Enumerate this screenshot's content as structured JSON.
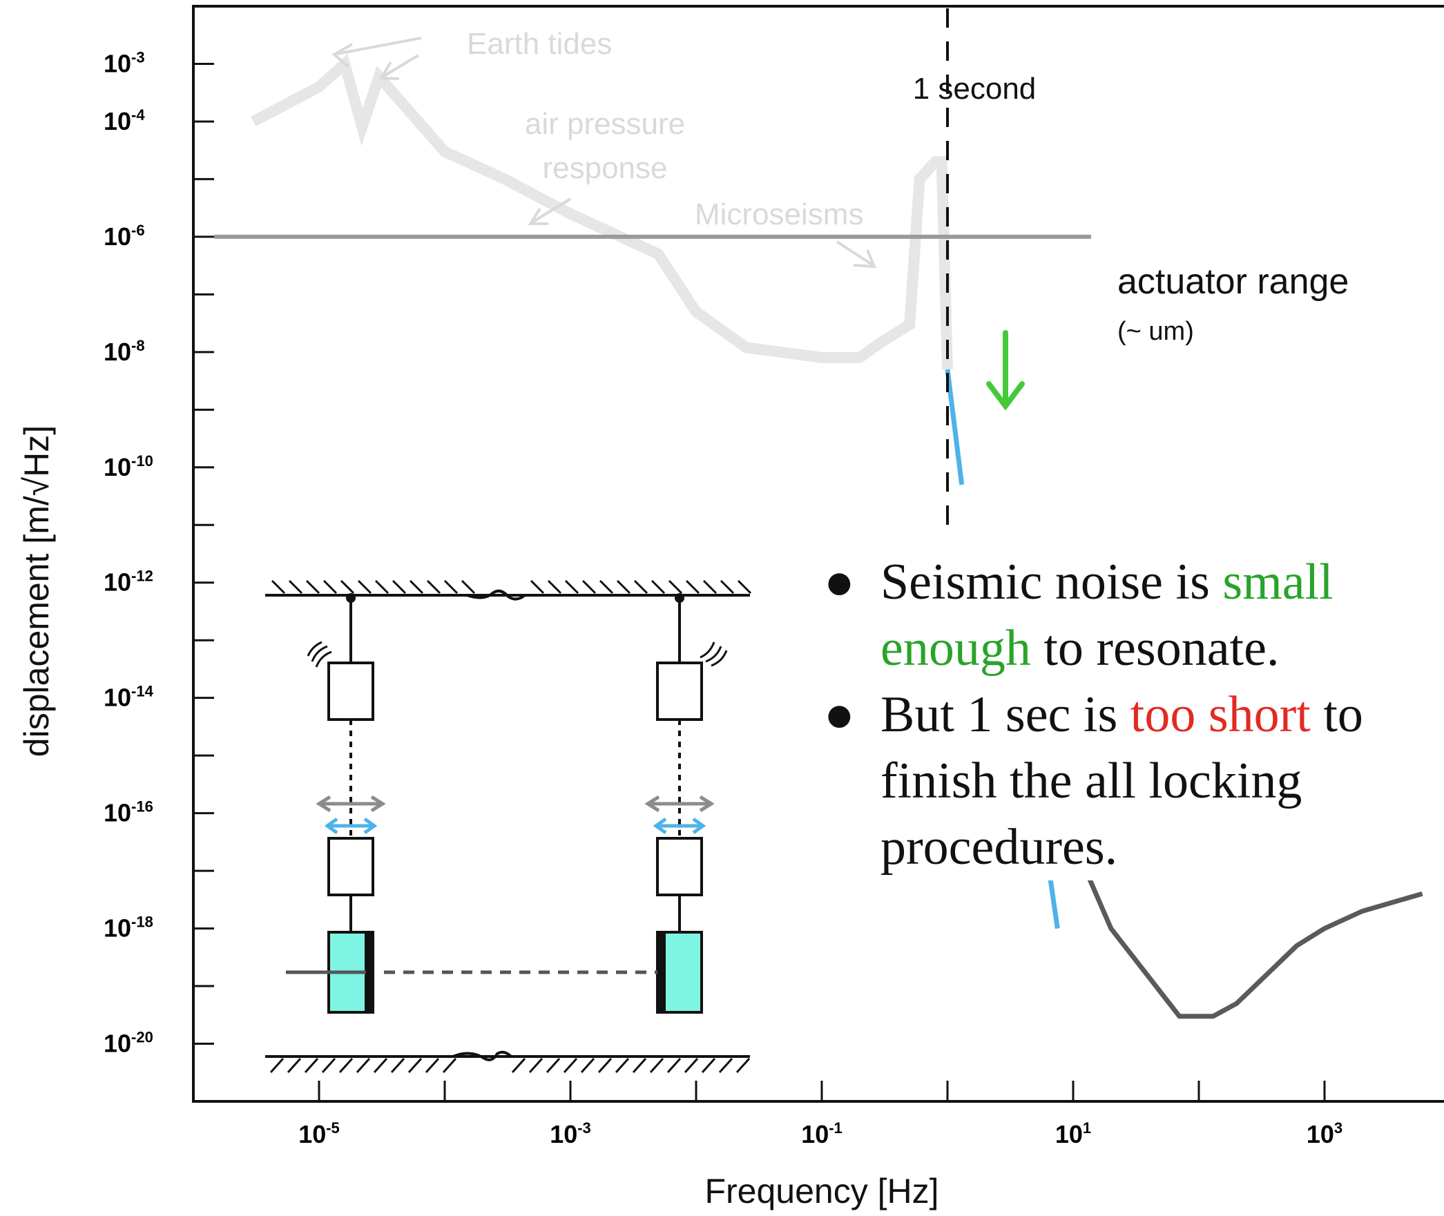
{
  "chart_data": {
    "type": "line",
    "title": "",
    "xlabel": "Frequency [Hz]",
    "ylabel": "displacement [m/√Hz]",
    "x_scale": "log",
    "y_scale": "log",
    "xlim": [
      1e-06,
      10000.0
    ],
    "ylim": [
      1e-21,
      0.01
    ],
    "x_tick_labels": [
      {
        "base": "10",
        "exp": "-5",
        "value": 1e-05
      },
      {
        "base": "10",
        "exp": "-3",
        "value": 0.001
      },
      {
        "base": "10",
        "exp": "-1",
        "value": 0.1
      },
      {
        "base": "10",
        "exp": "1",
        "value": 10.0
      },
      {
        "base": "10",
        "exp": "3",
        "value": 1000.0
      }
    ],
    "y_tick_labels": [
      {
        "base": "10",
        "exp": "-3",
        "value": 0.001
      },
      {
        "base": "10",
        "exp": "-4",
        "value": 0.0001
      },
      {
        "base": "10",
        "exp": "-6",
        "value": 1e-06
      },
      {
        "base": "10",
        "exp": "-8",
        "value": 1e-08
      },
      {
        "base": "10",
        "exp": "-10",
        "value": 1e-10
      },
      {
        "base": "10",
        "exp": "-12",
        "value": 1e-12
      },
      {
        "base": "10",
        "exp": "-14",
        "value": 1e-14
      },
      {
        "base": "10",
        "exp": "-16",
        "value": 1e-16
      },
      {
        "base": "10",
        "exp": "-18",
        "value": 1e-18
      },
      {
        "base": "10",
        "exp": "-20",
        "value": 1e-20
      }
    ],
    "series": [
      {
        "color": "#e6e6e6",
        "x": [
          3e-06,
          1e-05,
          1.6e-05,
          2.2e-05,
          3e-05,
          0.0001,
          0.0003,
          0.001,
          0.005,
          0.01,
          0.025,
          0.1,
          0.2,
          0.3,
          0.5,
          0.6,
          0.8,
          0.9,
          1.0
        ],
        "y": [
          0.0001,
          0.0004,
          0.001,
          8e-05,
          0.0006,
          3e-05,
          1e-05,
          2.5e-06,
          5e-07,
          5e-08,
          1.2e-08,
          8e-09,
          8e-09,
          1.5e-08,
          3e-08,
          1e-05,
          2e-05,
          2e-05,
          5e-09
        ]
      },
      {
        "color": "#4db3ea",
        "x": [
          1.0,
          1.3
        ],
        "y": [
          5e-09,
          5e-11
        ]
      },
      {
        "color": "#4db3ea",
        "x": [
          6.0,
          7.5
        ],
        "y": [
          3e-17,
          1e-18
        ]
      },
      {
        "color": "#5a5a5a",
        "x": [
          8.0,
          20,
          70,
          130,
          200,
          600,
          1000,
          2000,
          6000
        ],
        "y": [
          1e-16,
          1e-18,
          3e-20,
          3e-20,
          5e-20,
          5e-19,
          1e-18,
          2e-18,
          4e-18
        ]
      }
    ],
    "reference_lines": [
      {
        "type": "horizontal",
        "y": 1e-06,
        "color": "#9a9a9a",
        "label": "actuator range"
      },
      {
        "type": "vertical",
        "x": 1.0,
        "style": "dashed",
        "color": "#111111",
        "label": "1 second"
      }
    ],
    "annotations": {
      "earth_tides": "Earth tides",
      "air_pressure_line1": "air pressure",
      "air_pressure_line2": "response",
      "microseisms": "Microseisms",
      "one_second": "1 second",
      "actuator_range": "actuator range",
      "actuator_range_note": "(~ um)"
    },
    "colors": {
      "seismic_curve": "#e6e6e6",
      "actuator_line": "#9a9a9a",
      "sensitivity_curve": "#5a5a5a",
      "blue_segments": "#4db3ea",
      "green_arrow": "#45c93a",
      "mirror_fill": "#7ef5e3"
    }
  },
  "bullets": [
    {
      "prefix": "Seismic noise is ",
      "highlight": "small enough",
      "suffix": " to resonate.",
      "highlight_color": "#2aa32a"
    },
    {
      "prefix": "But 1 sec is ",
      "highlight": "too short",
      "suffix": " to finish the all locking procedures.",
      "highlight_color": "#e22a22"
    }
  ],
  "bullet_symbol": "●"
}
